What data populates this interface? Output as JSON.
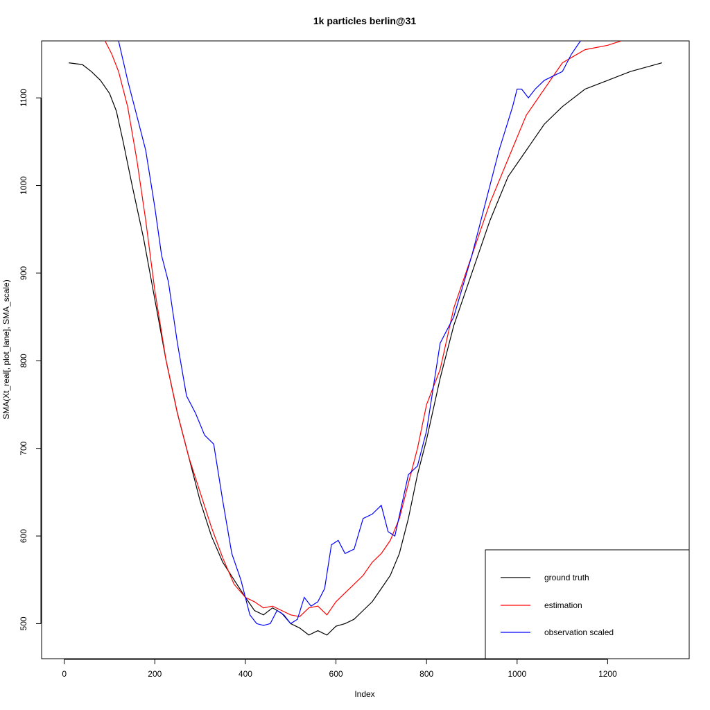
{
  "chart_data": {
    "type": "line",
    "title": "1k particles berlin@31",
    "xlabel": "Index",
    "ylabel": "SMA(Xt_real[, plot_lane], SMA_scale)",
    "xlim": [
      -50,
      1380
    ],
    "ylim": [
      460,
      1165
    ],
    "xticks": [
      0,
      200,
      400,
      600,
      800,
      1000,
      1200
    ],
    "yticks": [
      500,
      600,
      700,
      800,
      900,
      1000,
      1100
    ],
    "grid": false,
    "legend_position": "bottom-right",
    "series": [
      {
        "name": "ground truth",
        "color": "#000000",
        "x": [
          10,
          40,
          60,
          80,
          100,
          115,
          130,
          150,
          175,
          200,
          225,
          250,
          275,
          300,
          325,
          350,
          375,
          400,
          420,
          440,
          460,
          480,
          500,
          520,
          540,
          560,
          580,
          600,
          620,
          640,
          660,
          680,
          700,
          720,
          740,
          760,
          780,
          800,
          830,
          860,
          900,
          940,
          980,
          1020,
          1060,
          1100,
          1150,
          1200,
          1250,
          1320
        ],
        "y": [
          1140,
          1138,
          1130,
          1120,
          1105,
          1085,
          1050,
          1000,
          940,
          870,
          800,
          740,
          690,
          640,
          600,
          570,
          550,
          530,
          515,
          510,
          518,
          512,
          500,
          495,
          487,
          492,
          487,
          497,
          500,
          505,
          515,
          525,
          540,
          555,
          580,
          620,
          670,
          710,
          780,
          840,
          900,
          960,
          1010,
          1040,
          1070,
          1090,
          1110,
          1120,
          1130,
          1140
        ]
      },
      {
        "name": "estimation",
        "color": "#ff0000",
        "x": [
          90,
          105,
          120,
          140,
          160,
          180,
          200,
          225,
          250,
          275,
          300,
          325,
          350,
          375,
          400,
          420,
          440,
          460,
          480,
          500,
          520,
          540,
          560,
          580,
          600,
          620,
          640,
          660,
          680,
          700,
          720,
          740,
          760,
          780,
          800,
          830,
          860,
          900,
          940,
          980,
          1020,
          1060,
          1100,
          1150,
          1200,
          1230
        ],
        "y": [
          1165,
          1150,
          1130,
          1090,
          1030,
          960,
          880,
          800,
          740,
          690,
          650,
          610,
          575,
          545,
          530,
          525,
          518,
          520,
          515,
          510,
          508,
          518,
          520,
          510,
          525,
          535,
          545,
          555,
          570,
          580,
          595,
          620,
          660,
          700,
          750,
          790,
          860,
          920,
          980,
          1030,
          1080,
          1110,
          1140,
          1155,
          1160,
          1165
        ]
      },
      {
        "name": "observation scaled",
        "color": "#0000ff",
        "x": [
          120,
          140,
          160,
          180,
          200,
          215,
          230,
          250,
          270,
          290,
          310,
          330,
          350,
          370,
          390,
          410,
          425,
          440,
          455,
          470,
          485,
          500,
          515,
          530,
          545,
          560,
          575,
          590,
          605,
          620,
          640,
          660,
          680,
          700,
          715,
          730,
          760,
          780,
          800,
          830,
          860,
          900,
          930,
          960,
          990,
          1000,
          1010,
          1025,
          1040,
          1060,
          1100,
          1120,
          1140
        ],
        "y": [
          1165,
          1120,
          1080,
          1040,
          975,
          920,
          890,
          820,
          760,
          740,
          715,
          705,
          640,
          580,
          550,
          510,
          500,
          498,
          500,
          515,
          510,
          500,
          505,
          530,
          520,
          525,
          540,
          590,
          595,
          580,
          585,
          620,
          625,
          635,
          605,
          600,
          670,
          680,
          720,
          820,
          850,
          920,
          980,
          1040,
          1090,
          1110,
          1110,
          1100,
          1110,
          1120,
          1130,
          1150,
          1165
        ]
      }
    ]
  }
}
